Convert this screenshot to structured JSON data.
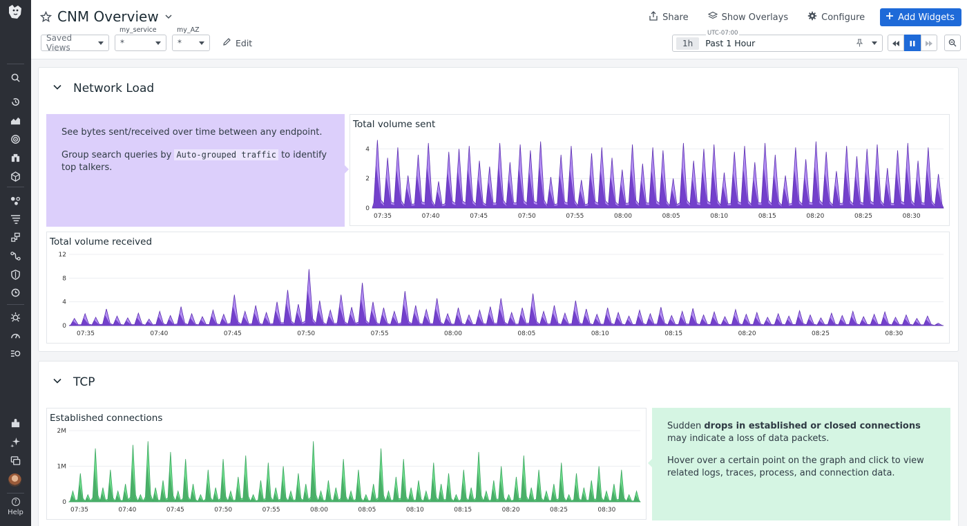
{
  "dashboard": {
    "title": "CNM Overview",
    "actions": {
      "share": "Share",
      "overlays": "Show Overlays",
      "configure": "Configure",
      "add_widgets": "Add Widgets"
    },
    "saved_views": "Saved Views",
    "template_vars": [
      {
        "label": "my_service",
        "value": "*"
      },
      {
        "label": "my_AZ",
        "value": "*"
      }
    ],
    "edit": "Edit",
    "time": {
      "timezone": "UTC-07:00",
      "chip": "1h",
      "range": "Past 1 Hour"
    }
  },
  "nav": {
    "help": "Help"
  },
  "groups": {
    "network_load": {
      "title": "Network Load",
      "note_line1": "See bytes sent/received over time between any endpoint.",
      "note_line2_pre": "Group search queries by ",
      "note_line2_code": "Auto-grouped traffic",
      "note_line2_post": " to identify top talkers."
    },
    "tcp": {
      "title": "TCP",
      "note_line1_pre": "Sudden ",
      "note_line1_bold": "drops in established or closed connections",
      "note_line1_post": " may indicate a loss of data packets.",
      "note_line2": "Hover over a certain point on the graph and click to view related logs, traces, process, and connection data."
    }
  },
  "colors": {
    "accent": "#1e6ad8",
    "purple_note": "#dccffb",
    "green_note": "#d5f5e3",
    "sent_dark": "#6733c4",
    "sent_light": "#b38ef2",
    "conn_fill": "#6fdc8c",
    "conn_dark": "#2c8a4a"
  },
  "chart_data": [
    {
      "type": "area",
      "title": "Total volume sent",
      "x": [
        "07:35",
        "07:40",
        "07:45",
        "07:50",
        "07:55",
        "08:00",
        "08:05",
        "08:10",
        "08:15",
        "08:20",
        "08:25",
        "08:30"
      ],
      "ylim": [
        0,
        5
      ],
      "yticks": [
        "0",
        "2",
        "4"
      ],
      "series_peaks": [
        4.6,
        3.4,
        4.1,
        2.2,
        3.6,
        4.4,
        1.8,
        3.8,
        4.0,
        4.2,
        3.2,
        2.8,
        4.4,
        3.1,
        4.3,
        3.9,
        4.5,
        2.1,
        3.6,
        4.2,
        1.9,
        3.7,
        4.1,
        3.4,
        2.6,
        4.3,
        3.0,
        4.1,
        3.9,
        2.0,
        4.4,
        3.2,
        4.0,
        4.3,
        2.4,
        3.8,
        4.2,
        3.1,
        4.4,
        3.6,
        2.2,
        4.1,
        3.3,
        4.5,
        3.8,
        2.5,
        4.2,
        3.5,
        4.0,
        4.3,
        2.7,
        3.9,
        4.4,
        3.2,
        4.1,
        2.3
      ]
    },
    {
      "type": "area",
      "title": "Total volume received",
      "x": [
        "07:35",
        "07:40",
        "07:45",
        "07:50",
        "07:55",
        "08:00",
        "08:05",
        "08:10",
        "08:15",
        "08:20",
        "08:25",
        "08:30"
      ],
      "ylim": [
        0,
        12
      ],
      "yticks": [
        "0",
        "4",
        "8",
        "12"
      ],
      "series_peaks": [
        1.2,
        2.0,
        1.4,
        2.8,
        1.6,
        1.3,
        2.1,
        1.1,
        2.4,
        1.7,
        3.2,
        2.0,
        1.5,
        2.6,
        1.9,
        5.2,
        2.4,
        3.4,
        2.2,
        4.0,
        6.0,
        3.6,
        9.5,
        4.2,
        2.6,
        5.2,
        3.1,
        7.2,
        4.0,
        3.0,
        2.4,
        5.8,
        3.4,
        2.7,
        4.6,
        2.0,
        3.0,
        1.8,
        2.6,
        3.2,
        4.6,
        2.2,
        3.0,
        5.4,
        2.4,
        3.4,
        2.1,
        4.2,
        2.8,
        1.9,
        3.0,
        2.2,
        1.6,
        2.6,
        2.0,
        3.1,
        1.7,
        2.4,
        2.9,
        1.8,
        2.3,
        1.5,
        2.7,
        1.9,
        2.2,
        1.4,
        2.0,
        1.6,
        2.5,
        1.8,
        1.3,
        2.1,
        1.7,
        2.4,
        1.5,
        1.9,
        2.3,
        1.4,
        1.8,
        1.2,
        1.6,
        0.4
      ]
    },
    {
      "type": "area",
      "title": "Established connections",
      "x": [
        "07:35",
        "07:40",
        "07:45",
        "07:50",
        "07:55",
        "08:00",
        "08:05",
        "08:10",
        "08:15",
        "08:20",
        "08:25",
        "08:30"
      ],
      "ylim": [
        0,
        2000000
      ],
      "yticks": [
        "0",
        "1M",
        "2M"
      ],
      "series_peaks": [
        0.3,
        0.8,
        0.2,
        1.5,
        0.4,
        0.9,
        0.3,
        0.5,
        1.6,
        0.2,
        1.7,
        0.4,
        0.6,
        1.4,
        0.3,
        1.2,
        0.5,
        0.2,
        0.9,
        0.4,
        1.2,
        0.3,
        0.7,
        1.3,
        0.2,
        0.6,
        1.1,
        0.4,
        1.0,
        0.3,
        0.8,
        0.5,
        1.7,
        0.3,
        0.6,
        0.4,
        1.2,
        0.3,
        0.9,
        0.2,
        0.5,
        1.5,
        0.3,
        0.7,
        1.2,
        0.4,
        0.6,
        0.3,
        1.1,
        0.5,
        0.8,
        0.2,
        0.9,
        0.4,
        1.4,
        0.3,
        0.6,
        1.0,
        0.2,
        0.7,
        1.3,
        0.4,
        0.9,
        0.3,
        0.5,
        1.1,
        0.2,
        0.8,
        0.4,
        0.6,
        1.0,
        0.3,
        0.5,
        0.9,
        0.2,
        0.3
      ]
    }
  ]
}
